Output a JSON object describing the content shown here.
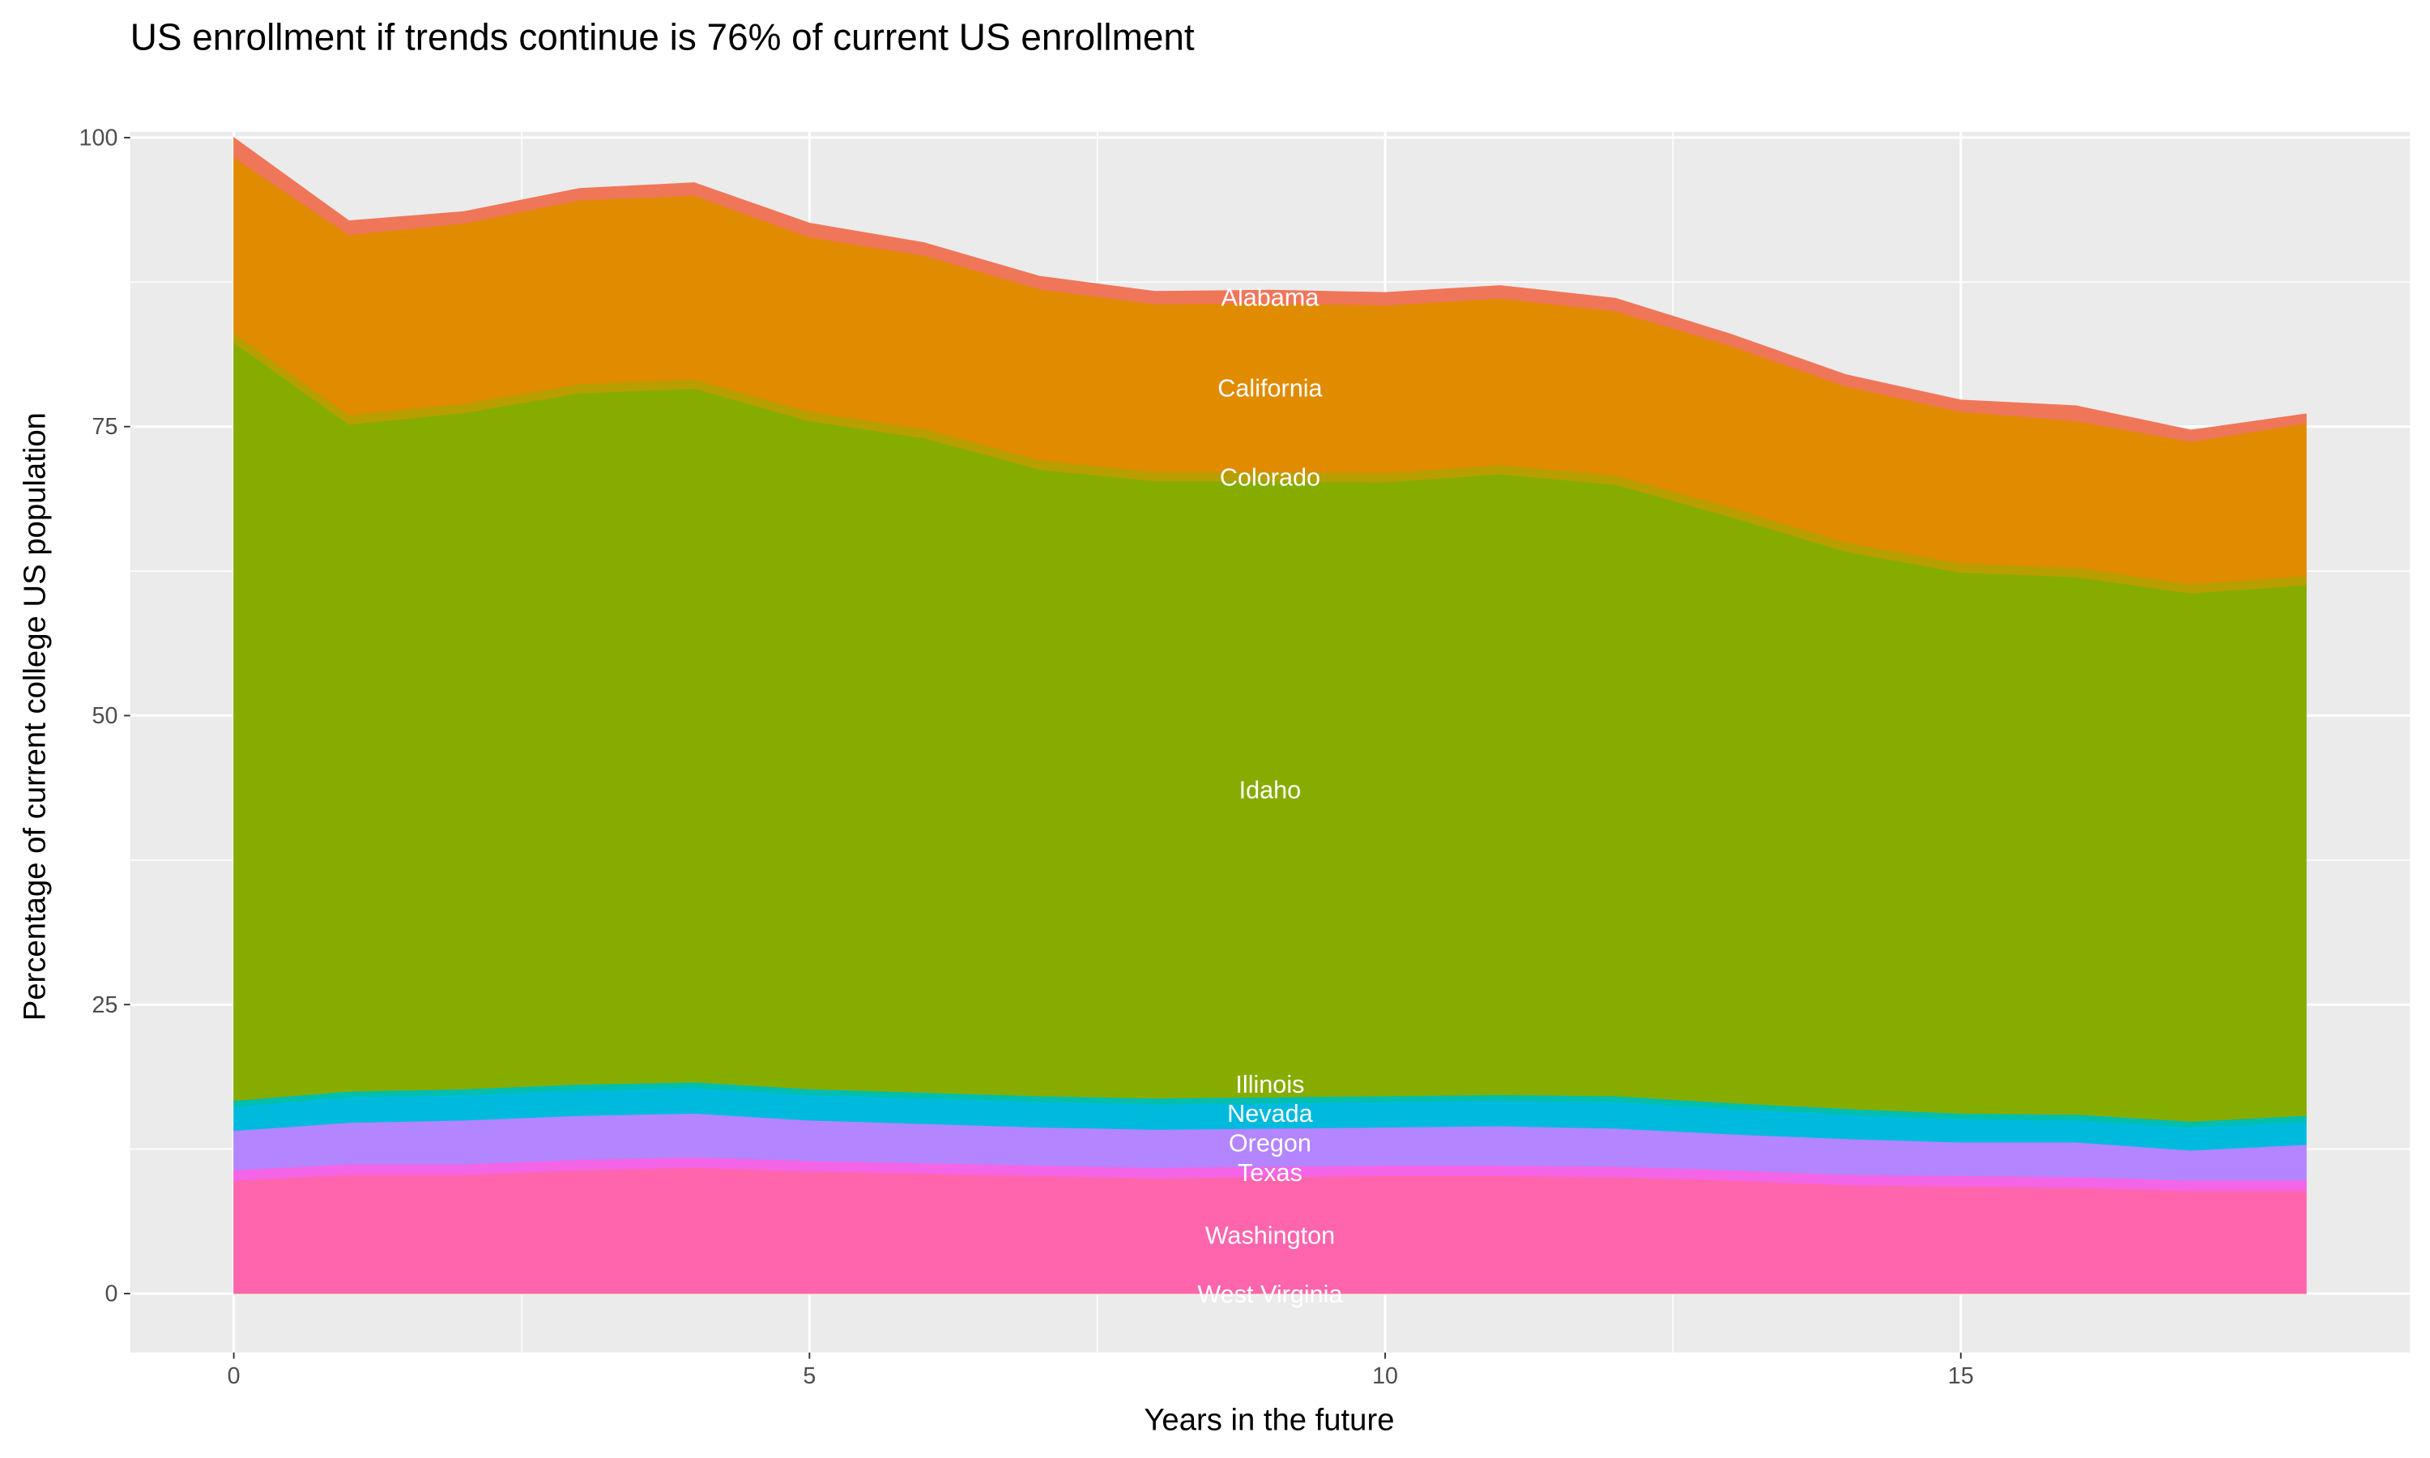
{
  "chart_data": {
    "type": "area",
    "stacked": true,
    "title": "US enrollment if trends continue is 76% of current US enrollment",
    "xlabel": "Years in the future",
    "ylabel": "Percentage of current college US population",
    "xlim": [
      -0.9,
      18.9
    ],
    "ylim": [
      -5.1,
      100.5
    ],
    "xticks": [
      0,
      5,
      10,
      15
    ],
    "yticks": [
      0,
      25,
      50,
      75,
      100
    ],
    "grid": true,
    "legend": "none",
    "label_x": 9,
    "x": [
      0,
      1,
      2,
      3,
      4,
      5,
      6,
      7,
      8,
      9,
      10,
      11,
      12,
      13,
      14,
      15,
      16,
      17,
      18
    ],
    "series": [
      {
        "name": "West Virginia",
        "color": "#FF6C91",
        "values": [
          0.1,
          0.1,
          0.1,
          0.1,
          0.1,
          0.1,
          0.1,
          0.1,
          0.1,
          0.1,
          0.1,
          0.1,
          0.1,
          0.1,
          0.1,
          0.1,
          0.1,
          0.1,
          0.1
        ]
      },
      {
        "name": "Washington",
        "color": "#FF65AC",
        "values": [
          9.7,
          10.2,
          10.2,
          10.6,
          10.8,
          10.5,
          10.3,
          10.1,
          9.9,
          10.0,
          10.1,
          10.1,
          10.0,
          9.7,
          9.3,
          9.2,
          9.1,
          8.8,
          8.8
        ]
      },
      {
        "name": "Texas",
        "color": "#F365E6",
        "values": [
          0.9,
          0.9,
          0.9,
          0.9,
          0.9,
          0.9,
          0.9,
          0.9,
          0.9,
          0.9,
          0.9,
          0.9,
          0.9,
          0.9,
          0.9,
          0.9,
          0.9,
          0.9,
          0.9
        ]
      },
      {
        "name": "Oregon",
        "color": "#B385FF",
        "values": [
          3.4,
          3.6,
          3.8,
          3.8,
          3.8,
          3.5,
          3.4,
          3.3,
          3.3,
          3.3,
          3.3,
          3.4,
          3.3,
          3.1,
          3.1,
          2.9,
          3.0,
          2.6,
          3.1
        ]
      },
      {
        "name": "Nevada",
        "color": "#00BADE",
        "values": [
          2.1,
          2.2,
          2.2,
          2.2,
          2.2,
          2.2,
          2.2,
          2.2,
          2.2,
          2.2,
          2.2,
          2.2,
          2.3,
          2.2,
          2.1,
          2.0,
          1.9,
          2.0,
          2.0
        ]
      },
      {
        "name": "Illinois",
        "color": "#00BFAE",
        "values": [
          0.5,
          0.5,
          0.5,
          0.5,
          0.5,
          0.5,
          0.5,
          0.5,
          0.5,
          0.5,
          0.5,
          0.5,
          0.5,
          0.5,
          0.5,
          0.5,
          0.5,
          0.5,
          0.5
        ]
      },
      {
        "name": "Idaho",
        "color": "#87AC00",
        "values": [
          65.6,
          57.7,
          58.5,
          59.8,
          60.0,
          57.8,
          56.6,
          54.2,
          53.4,
          53.3,
          53.1,
          53.7,
          52.9,
          50.7,
          48.2,
          46.8,
          46.5,
          45.7,
          45.9
        ]
      },
      {
        "name": "Colorado",
        "color": "#B99E00",
        "values": [
          0.8,
          0.8,
          0.8,
          0.8,
          0.8,
          0.8,
          0.8,
          0.8,
          0.8,
          0.8,
          0.8,
          0.8,
          0.8,
          0.8,
          0.8,
          0.8,
          0.8,
          0.8,
          0.8
        ]
      },
      {
        "name": "California",
        "color": "#E08B00",
        "values": [
          15.2,
          15.6,
          15.6,
          15.9,
          15.9,
          15.1,
          15.0,
          14.8,
          14.5,
          14.6,
          14.5,
          14.4,
          14.2,
          14.0,
          13.5,
          13.1,
          12.7,
          12.3,
          13.2
        ]
      },
      {
        "name": "Alabama",
        "color": "#F0765A",
        "values": [
          1.7,
          1.2,
          1.0,
          1.0,
          1.1,
          1.2,
          1.1,
          1.1,
          1.1,
          1.1,
          1.1,
          1.1,
          1.1,
          1.0,
          1.0,
          1.0,
          1.3,
          1.0,
          0.8
        ]
      }
    ]
  }
}
